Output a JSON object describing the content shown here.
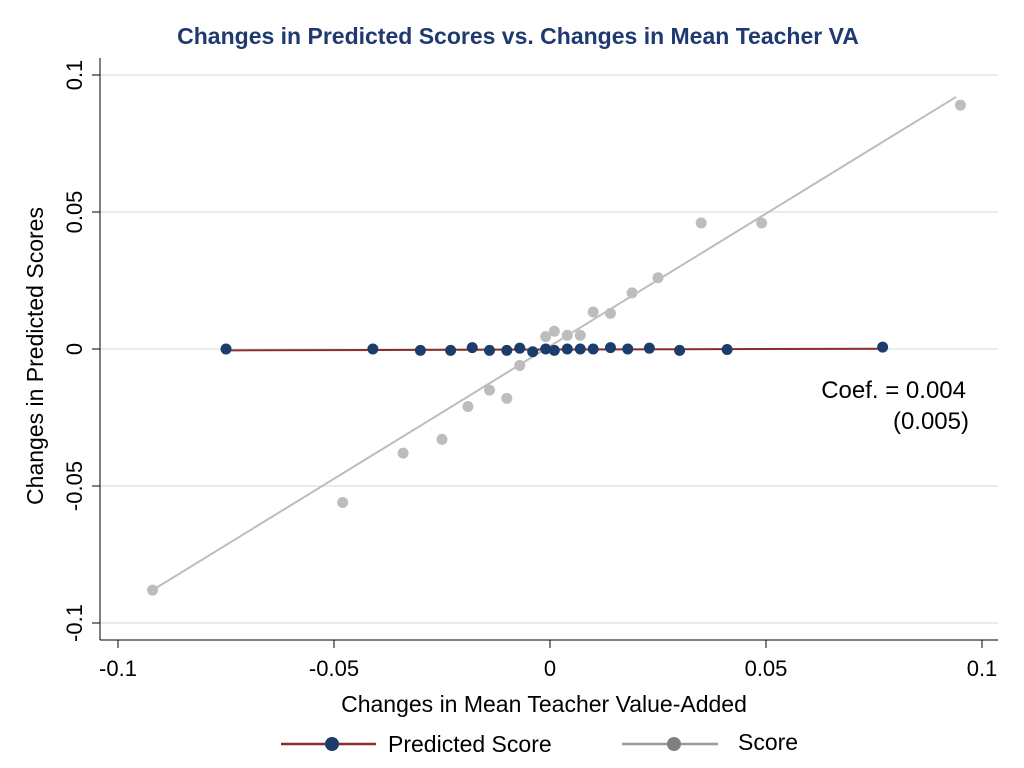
{
  "chart_data": {
    "type": "scatter",
    "title": "Changes in Predicted Scores vs. Changes in Mean Teacher VA",
    "xlabel": "Changes in Mean Teacher Value-Added",
    "ylabel": "Changes in Predicted Scores",
    "xlim": [
      -0.1,
      0.1
    ],
    "ylim": [
      -0.1,
      0.1
    ],
    "x_ticks": [
      "-0.1",
      "-0.05",
      "0",
      "0.05",
      "0.1"
    ],
    "y_ticks": [
      "-0.1",
      "-0.05",
      "0",
      "0.05",
      "0.1"
    ],
    "grid": "horizontal",
    "legend_position": "bottom",
    "annotation": {
      "line1": "Coef. = 0.004",
      "line2": "(0.005)"
    },
    "colors": {
      "title": "#1f3a70",
      "predicted_points": "#1c3d6b",
      "predicted_line": "#8b2d2d",
      "score_points": "#bdbdbd",
      "score_line": "#bdbdbd",
      "grid": "#e4eef1"
    },
    "series": [
      {
        "name": "Predicted Score",
        "points": [
          {
            "x": -0.075,
            "y": 0.0
          },
          {
            "x": -0.041,
            "y": 0.0
          },
          {
            "x": -0.03,
            "y": -0.0005
          },
          {
            "x": -0.023,
            "y": -0.0005
          },
          {
            "x": -0.018,
            "y": 0.0005
          },
          {
            "x": -0.014,
            "y": -0.0005
          },
          {
            "x": -0.01,
            "y": -0.0005
          },
          {
            "x": -0.007,
            "y": 0.0003
          },
          {
            "x": -0.004,
            "y": -0.001
          },
          {
            "x": -0.001,
            "y": 0.0
          },
          {
            "x": 0.001,
            "y": -0.0005
          },
          {
            "x": 0.004,
            "y": 0.0
          },
          {
            "x": 0.007,
            "y": 0.0
          },
          {
            "x": 0.01,
            "y": 0.0
          },
          {
            "x": 0.014,
            "y": 0.0005
          },
          {
            "x": 0.018,
            "y": 0.0
          },
          {
            "x": 0.023,
            "y": 0.0003
          },
          {
            "x": 0.03,
            "y": -0.0005
          },
          {
            "x": 0.041,
            "y": -0.0002
          },
          {
            "x": 0.077,
            "y": 0.0007
          }
        ],
        "fit": {
          "x": [
            -0.074,
            0.077
          ],
          "y": [
            -0.0005,
            0.0001
          ]
        }
      },
      {
        "name": "Score",
        "points": [
          {
            "x": -0.092,
            "y": -0.088
          },
          {
            "x": -0.048,
            "y": -0.056
          },
          {
            "x": -0.034,
            "y": -0.038
          },
          {
            "x": -0.025,
            "y": -0.033
          },
          {
            "x": -0.019,
            "y": -0.021
          },
          {
            "x": -0.014,
            "y": -0.015
          },
          {
            "x": -0.01,
            "y": -0.018
          },
          {
            "x": -0.007,
            "y": -0.006
          },
          {
            "x": -0.001,
            "y": 0.0045
          },
          {
            "x": 0.001,
            "y": 0.0065
          },
          {
            "x": 0.004,
            "y": 0.005
          },
          {
            "x": 0.007,
            "y": 0.005
          },
          {
            "x": 0.01,
            "y": 0.0135
          },
          {
            "x": 0.014,
            "y": 0.013
          },
          {
            "x": 0.019,
            "y": 0.0205
          },
          {
            "x": 0.025,
            "y": 0.026
          },
          {
            "x": 0.035,
            "y": 0.046
          },
          {
            "x": 0.049,
            "y": 0.046
          },
          {
            "x": 0.095,
            "y": 0.089
          }
        ],
        "fit": {
          "x": [
            -0.092,
            0.094
          ],
          "y": [
            -0.088,
            0.092
          ]
        }
      }
    ]
  }
}
